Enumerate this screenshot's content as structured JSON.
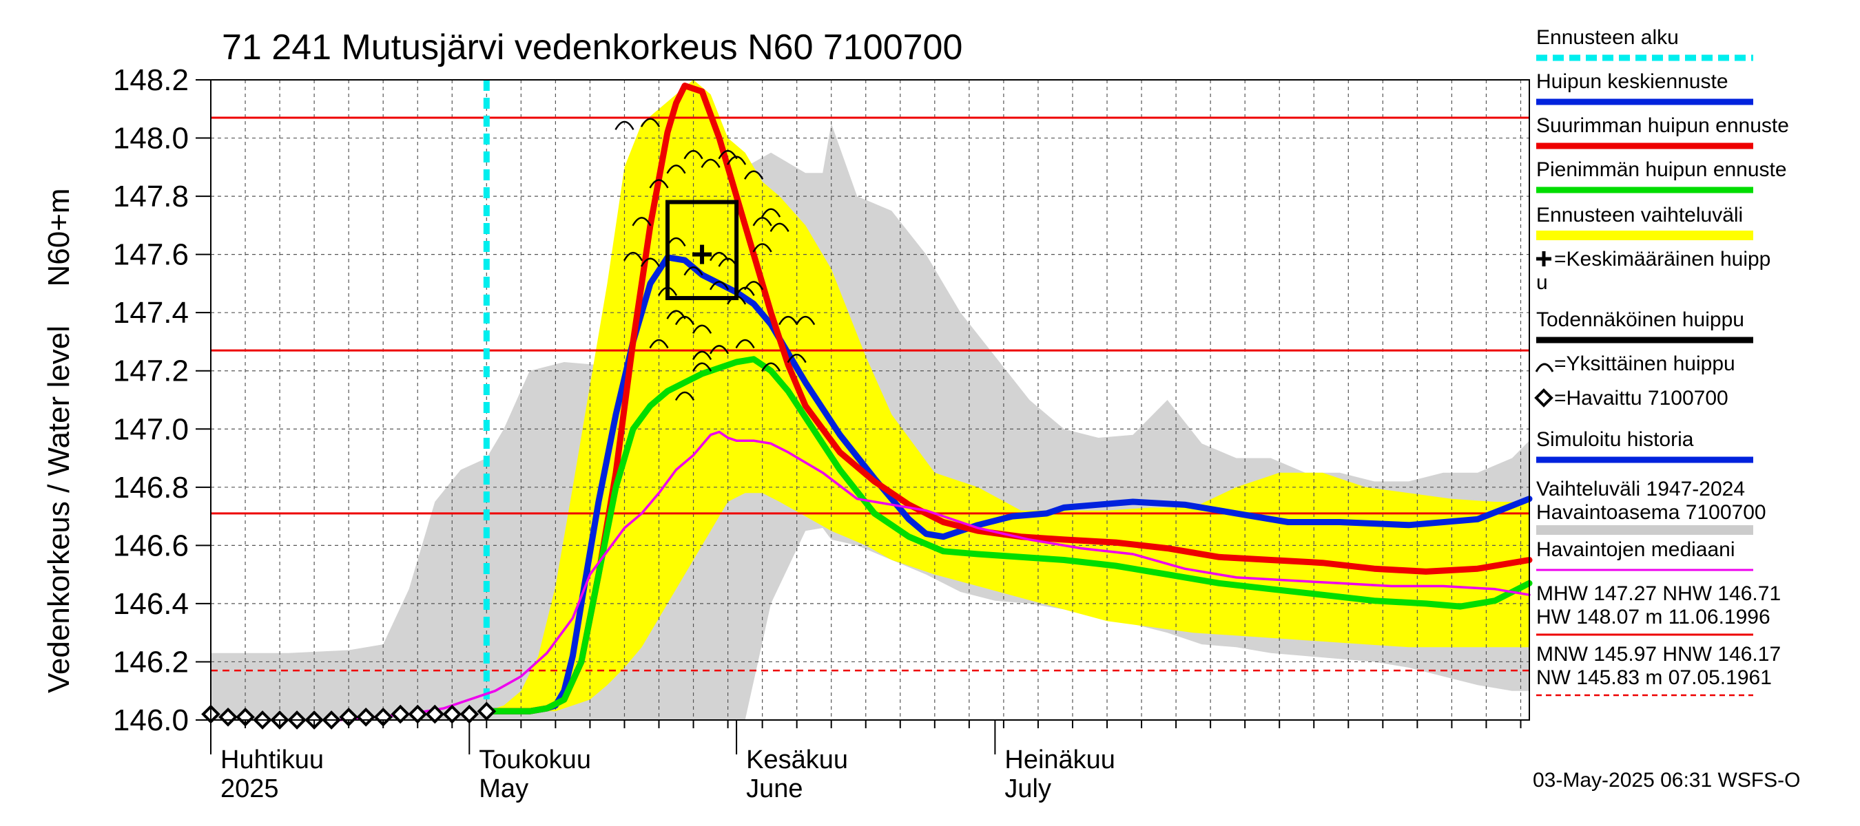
{
  "chart_data": {
    "type": "line",
    "title": "71 241 Mutusjärvi vedenkorkeus N60 7100700",
    "ylabel_top": "N60+m",
    "ylabel": "Vedenkorkeus / Water level",
    "ylim": [
      146.0,
      148.2
    ],
    "yticks": [
      "146.0",
      "146.2",
      "146.4",
      "146.6",
      "146.8",
      "147.0",
      "147.2",
      "147.4",
      "147.6",
      "147.8",
      "148.0",
      "148.2"
    ],
    "x_unit": "day of year 2025",
    "xlim": [
      91,
      244
    ],
    "months": [
      {
        "fi": "Huhtikuu",
        "en": "2025",
        "day": 91
      },
      {
        "fi": "Toukokuu",
        "en": "May",
        "day": 121
      },
      {
        "fi": "Kesäkuu",
        "en": "June",
        "day": 152
      },
      {
        "fi": "Heinäkuu",
        "en": "July",
        "day": 182
      }
    ],
    "forecast_start_day": 123,
    "reference_lines": [
      {
        "level": 148.07,
        "style": "solid"
      },
      {
        "level": 147.27,
        "style": "solid"
      },
      {
        "level": 146.71,
        "style": "solid"
      },
      {
        "level": 146.17,
        "style": "dashed"
      }
    ],
    "historical_range": {
      "x": [
        91,
        100,
        107,
        111,
        114,
        117,
        120,
        123,
        125,
        128,
        132,
        136,
        140,
        143,
        146,
        150,
        153,
        156,
        160,
        162,
        163,
        166,
        170,
        174,
        178,
        182,
        186,
        190,
        194,
        198,
        202,
        206,
        210,
        214,
        218,
        222,
        226,
        230,
        234,
        238,
        242,
        244
      ],
      "upper": [
        146.23,
        146.23,
        146.24,
        146.26,
        146.45,
        146.75,
        146.86,
        146.9,
        147.0,
        147.2,
        147.23,
        147.22,
        147.4,
        147.5,
        147.37,
        147.6,
        147.9,
        147.95,
        147.88,
        147.88,
        148.05,
        147.8,
        147.75,
        147.6,
        147.4,
        147.25,
        147.1,
        147.0,
        146.97,
        146.98,
        147.1,
        146.95,
        146.9,
        146.9,
        146.85,
        146.85,
        146.82,
        146.82,
        146.85,
        146.85,
        146.9,
        146.96
      ],
      "lower": [
        146.0,
        146.0,
        146.0,
        146.0,
        146.0,
        146.0,
        146.0,
        146.0,
        146.0,
        146.0,
        146.0,
        146.0,
        146.0,
        146.0,
        146.0,
        146.0,
        146.0,
        146.4,
        146.65,
        146.66,
        146.62,
        146.6,
        146.55,
        146.5,
        146.44,
        146.41,
        146.4,
        146.38,
        146.36,
        146.33,
        146.3,
        146.26,
        146.25,
        146.23,
        146.22,
        146.21,
        146.2,
        146.18,
        146.15,
        146.12,
        146.1,
        146.1
      ]
    },
    "forecast_range": {
      "x": [
        123,
        125,
        127,
        129,
        131,
        133,
        135,
        137,
        139,
        141,
        143,
        145,
        147,
        149,
        151,
        153,
        155,
        157,
        160,
        163,
        167,
        170,
        175,
        180,
        185,
        190,
        195,
        200,
        205,
        210,
        215,
        220,
        225,
        230,
        235,
        240,
        244
      ],
      "upper": [
        146.03,
        146.05,
        146.1,
        146.22,
        146.46,
        146.8,
        147.15,
        147.5,
        147.9,
        148.05,
        148.1,
        148.15,
        148.2,
        148.15,
        148.0,
        147.95,
        147.85,
        147.8,
        147.7,
        147.55,
        147.25,
        147.05,
        146.85,
        146.8,
        146.72,
        146.72,
        146.72,
        146.73,
        146.73,
        146.8,
        146.85,
        146.85,
        146.8,
        146.78,
        146.76,
        146.75,
        146.75
      ],
      "lower": [
        146.03,
        146.03,
        146.03,
        146.03,
        146.03,
        146.05,
        146.07,
        146.12,
        146.18,
        146.25,
        146.35,
        146.45,
        146.55,
        146.65,
        146.75,
        146.78,
        146.78,
        146.75,
        146.7,
        146.65,
        146.6,
        146.55,
        146.5,
        146.46,
        146.42,
        146.38,
        146.34,
        146.32,
        146.3,
        146.29,
        146.28,
        146.27,
        146.26,
        146.25,
        146.25,
        146.25,
        146.25
      ]
    },
    "series": [
      {
        "name": "Huipun keskiennuste",
        "color": "#0022dd",
        "x": [
          123,
          126,
          128,
          130,
          131,
          132,
          133,
          134,
          136,
          138,
          140,
          142,
          144,
          146,
          148,
          150,
          152,
          154,
          156,
          160,
          164,
          168,
          170,
          172,
          174,
          176,
          180,
          184,
          188,
          190,
          194,
          198,
          204,
          210,
          216,
          222,
          230,
          238,
          244
        ],
        "y": [
          146.03,
          146.03,
          146.03,
          146.04,
          146.05,
          146.1,
          146.22,
          146.4,
          146.75,
          147.05,
          147.3,
          147.5,
          147.59,
          147.58,
          147.53,
          147.5,
          147.47,
          147.43,
          147.36,
          147.16,
          146.98,
          146.83,
          146.76,
          146.69,
          146.64,
          146.63,
          146.67,
          146.7,
          146.71,
          146.73,
          146.74,
          146.75,
          146.74,
          146.71,
          146.68,
          146.68,
          146.67,
          146.69,
          146.76
        ]
      },
      {
        "name": "Suurimman huipun ennuste",
        "color": "#ee0000",
        "x": [
          123,
          126,
          128,
          130,
          132,
          134,
          136,
          138,
          140,
          142,
          144,
          145,
          146,
          148,
          150,
          152,
          154,
          156,
          158,
          160,
          164,
          168,
          172,
          176,
          180,
          185,
          190,
          196,
          202,
          208,
          214,
          220,
          226,
          232,
          238,
          244
        ],
        "y": [
          146.03,
          146.03,
          146.03,
          146.04,
          146.07,
          146.2,
          146.5,
          146.85,
          147.3,
          147.7,
          148.02,
          148.12,
          148.18,
          148.16,
          148.0,
          147.8,
          147.6,
          147.4,
          147.22,
          147.08,
          146.92,
          146.82,
          146.74,
          146.68,
          146.65,
          146.63,
          146.62,
          146.61,
          146.59,
          146.56,
          146.55,
          146.54,
          146.52,
          146.51,
          146.52,
          146.55
        ]
      },
      {
        "name": "Pienimmän huipun ennuste",
        "color": "#00dd00",
        "x": [
          123,
          126,
          128,
          130,
          132,
          134,
          136,
          138,
          140,
          142,
          144,
          146,
          148,
          150,
          152,
          154,
          156,
          158,
          160,
          164,
          168,
          172,
          176,
          180,
          185,
          190,
          196,
          202,
          208,
          214,
          220,
          226,
          232,
          236,
          240,
          244
        ],
        "y": [
          146.03,
          146.03,
          146.03,
          146.04,
          146.07,
          146.2,
          146.5,
          146.8,
          147.0,
          147.08,
          147.13,
          147.16,
          147.19,
          147.21,
          147.23,
          147.24,
          147.2,
          147.13,
          147.04,
          146.86,
          146.71,
          146.63,
          146.58,
          146.57,
          146.56,
          146.55,
          146.53,
          146.5,
          146.47,
          146.45,
          146.43,
          146.41,
          146.4,
          146.39,
          146.41,
          146.47
        ]
      },
      {
        "name": "Havaintojen mediaani",
        "color": "#ee00ee",
        "x": [
          106,
          110,
          114,
          118,
          121,
          124,
          127,
          130,
          133,
          135,
          137,
          139,
          141,
          143,
          145,
          147,
          149,
          150,
          151,
          152,
          154,
          156,
          158,
          162,
          166,
          170,
          174,
          180,
          186,
          192,
          198,
          204,
          210,
          216,
          222,
          228,
          234,
          240,
          244
        ],
        "y": [
          146.0,
          146.01,
          146.02,
          146.04,
          146.07,
          146.1,
          146.15,
          146.23,
          146.35,
          146.5,
          146.58,
          146.66,
          146.71,
          146.78,
          146.86,
          146.91,
          146.98,
          146.99,
          146.97,
          146.96,
          146.96,
          146.95,
          146.92,
          146.85,
          146.76,
          146.74,
          146.72,
          146.66,
          146.62,
          146.59,
          146.57,
          146.52,
          146.49,
          146.48,
          146.47,
          146.46,
          146.46,
          146.45,
          146.43
        ]
      }
    ],
    "observed": {
      "name": "Havaittu 7100700",
      "x": [
        91,
        93,
        95,
        97,
        99,
        101,
        103,
        105,
        107,
        109,
        111,
        113,
        115,
        117,
        119,
        121,
        123
      ],
      "y": [
        146.02,
        146.01,
        146.01,
        146.0,
        146.0,
        146.0,
        146.0,
        146.0,
        146.01,
        146.01,
        146.01,
        146.02,
        146.02,
        146.02,
        146.02,
        146.02,
        146.03
      ]
    },
    "individual_peaks": {
      "x": [
        139,
        142,
        143,
        143,
        145,
        145,
        146,
        147,
        148,
        149,
        150,
        151,
        152,
        153,
        154,
        155,
        156,
        157,
        158,
        159,
        160,
        141,
        145,
        147,
        150,
        152,
        154,
        146,
        148,
        151,
        155,
        140,
        142,
        144,
        148,
        150,
        153,
        156
      ],
      "y": [
        148.05,
        148.06,
        147.85,
        147.3,
        147.9,
        147.4,
        147.38,
        147.95,
        147.22,
        147.92,
        147.6,
        147.58,
        147.93,
        147.48,
        147.88,
        147.63,
        147.75,
        147.7,
        147.38,
        147.25,
        147.38,
        147.72,
        147.65,
        147.55,
        147.5,
        147.45,
        147.5,
        147.12,
        147.26,
        147.95,
        147.72,
        147.6,
        147.58,
        147.48,
        147.35,
        147.28,
        147.3,
        147.22
      ]
    },
    "mean_peak": {
      "x": 148,
      "y": 147.6
    },
    "probable_peak_box": {
      "x0": 144,
      "x1": 152,
      "y0": 147.45,
      "y1": 147.78
    },
    "legend": {
      "placement": "right",
      "items": [
        {
          "label": "Ennusteen alku",
          "color": "#00eeee",
          "kind": "dashed"
        },
        {
          "label": "Huipun keskiennuste",
          "color": "#0022dd",
          "kind": "line"
        },
        {
          "label": "Suurimman huipun ennuste",
          "color": "#ee0000",
          "kind": "line"
        },
        {
          "label": "Pienimmän huipun ennuste",
          "color": "#00dd00",
          "kind": "line"
        },
        {
          "label": "Ennusteen vaihteluväli",
          "color": "#ffff00",
          "kind": "band"
        },
        {
          "label_a": "=Keskimääräinen huipp",
          "label_b": "u",
          "kind": "plus"
        },
        {
          "label": "Todennäköinen huippu",
          "color": "#000000",
          "kind": "line"
        },
        {
          "label": "=Yksittäinen huippu",
          "kind": "arc"
        },
        {
          "label": "=Havaittu 7100700",
          "kind": "diamond"
        },
        {
          "label": "Simuloitu historia",
          "color": "#0022dd",
          "kind": "line"
        },
        {
          "label_a": "Vaihteluväli 1947-2024",
          "label_b": " Havaintoasema 7100700",
          "color": "#cccccc",
          "kind": "band"
        },
        {
          "label": "Havaintojen mediaani",
          "color": "#ee00ee",
          "kind": "thin"
        },
        {
          "label_a": "MHW 147.27 NHW 146.71",
          "label_b": "HW 148.07 m 11.06.1996",
          "color": "#ee0000",
          "kind": "thin"
        },
        {
          "label_a": "MNW 145.97 HNW 146.17",
          "label_b": "NW 145.83 m 07.05.1961",
          "color": "#ee0000",
          "kind": "dashedthin"
        }
      ]
    },
    "timestamp": "03-May-2025 06:31 WSFS-O"
  }
}
